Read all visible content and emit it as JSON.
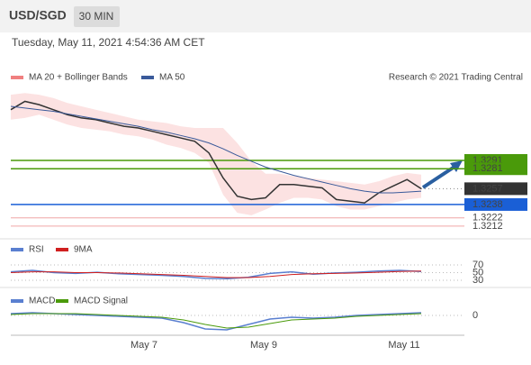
{
  "header": {
    "symbol": "USD/SGD",
    "timeframe": "30 MIN",
    "timestamp": "Tuesday, May 11, 2021 4:54:36 AM CET"
  },
  "chart_data": [
    {
      "type": "line",
      "legend": [
        "MA 20 + Bollinger Bands",
        "MA 50"
      ],
      "credit": "Research © 2021 Trading Central",
      "ylim": [
        1.32,
        1.3408
      ],
      "series": [
        {
          "name": "Price",
          "color": "#333333",
          "values": [
            1.3352,
            1.3362,
            1.3358,
            1.3352,
            1.3346,
            1.3342,
            1.334,
            1.3336,
            1.3332,
            1.333,
            1.3326,
            1.3322,
            1.3318,
            1.3314,
            1.33,
            1.327,
            1.3248,
            1.3244,
            1.3246,
            1.3262,
            1.3262,
            1.326,
            1.3258,
            1.3244,
            1.3242,
            1.324,
            1.3252,
            1.326,
            1.3268,
            1.3257
          ]
        },
        {
          "name": "MA 50",
          "color": "#3a5a9a",
          "values": [
            1.3356,
            1.3354,
            1.3352,
            1.335,
            1.3347,
            1.3344,
            1.3341,
            1.3338,
            1.3335,
            1.3332,
            1.3328,
            1.3325,
            1.3321,
            1.3317,
            1.3312,
            1.3305,
            1.3297,
            1.329,
            1.3283,
            1.3278,
            1.3273,
            1.3269,
            1.3265,
            1.3261,
            1.3257,
            1.3254,
            1.3252,
            1.3252,
            1.3253,
            1.3254
          ]
        },
        {
          "name": "Bollinger upper",
          "color": "#f7a0a0",
          "values": [
            1.337,
            1.3372,
            1.337,
            1.3366,
            1.336,
            1.3356,
            1.3352,
            1.3348,
            1.3344,
            1.334,
            1.3338,
            1.3336,
            1.3332,
            1.333,
            1.333,
            1.333,
            1.3312,
            1.329,
            1.3275,
            1.3275,
            1.3272,
            1.327,
            1.3268,
            1.3266,
            1.3264,
            1.3262,
            1.3266,
            1.3272,
            1.3276,
            1.3274
          ]
        },
        {
          "name": "Bollinger lower",
          "color": "#f7a0a0",
          "values": [
            1.334,
            1.3342,
            1.3346,
            1.334,
            1.3334,
            1.333,
            1.3328,
            1.3326,
            1.3322,
            1.332,
            1.3316,
            1.331,
            1.3306,
            1.33,
            1.3288,
            1.325,
            1.3228,
            1.3225,
            1.3232,
            1.324,
            1.3246,
            1.3246,
            1.3244,
            1.3236,
            1.3232,
            1.3232,
            1.3236,
            1.324,
            1.3244,
            1.3246
          ]
        }
      ],
      "levels": [
        {
          "value": 1.3291,
          "color": "#4a9a0a"
        },
        {
          "value": 1.3281,
          "color": "#4a9a0a"
        },
        {
          "value": 1.3257,
          "color": "#333333"
        },
        {
          "value": 1.3238,
          "color": "#1a5fd6"
        },
        {
          "value": 1.3222,
          "color": "#e05050"
        },
        {
          "value": 1.3212,
          "color": "#e05050"
        }
      ]
    },
    {
      "type": "line",
      "ylim": [
        30,
        70
      ],
      "yticks": [
        30,
        50,
        70
      ],
      "series": [
        {
          "name": "RSI",
          "color": "#5a7fd0",
          "values": [
            52,
            56,
            50,
            48,
            51,
            47,
            45,
            43,
            40,
            35,
            34,
            38,
            48,
            52,
            46,
            49,
            51,
            54,
            56,
            53
          ]
        },
        {
          "name": "9MA",
          "color": "#d02020",
          "values": [
            50,
            52,
            52,
            50,
            50,
            49,
            47,
            45,
            43,
            40,
            37,
            37,
            40,
            45,
            47,
            48,
            49,
            51,
            53,
            54
          ]
        }
      ]
    },
    {
      "type": "line",
      "ylim": [
        -0.002,
        0.002
      ],
      "yticks": [
        0
      ],
      "series": [
        {
          "name": "MACD",
          "color": "#5a7fd0",
          "values": [
            0.0002,
            0.0003,
            0.0002,
            0.0001,
            0,
            -0.0001,
            -0.0002,
            -0.0003,
            -0.0008,
            -0.0015,
            -0.0016,
            -0.001,
            -0.0004,
            -0.0002,
            -0.0003,
            -0.0002,
            0,
            0.0001,
            0.0002,
            0.0003
          ]
        },
        {
          "name": "MACD Signal",
          "color": "#4a9a0a",
          "values": [
            0.0001,
            0.0002,
            0.0002,
            0.0002,
            0.0001,
            0,
            -0.0001,
            -0.0002,
            -0.0005,
            -0.001,
            -0.0014,
            -0.0013,
            -0.0009,
            -0.0005,
            -0.0004,
            -0.0003,
            -0.0001,
            0,
            0.0001,
            0.0002
          ]
        }
      ]
    }
  ],
  "x_labels": [
    "May 7",
    "May 9",
    "May 11"
  ]
}
